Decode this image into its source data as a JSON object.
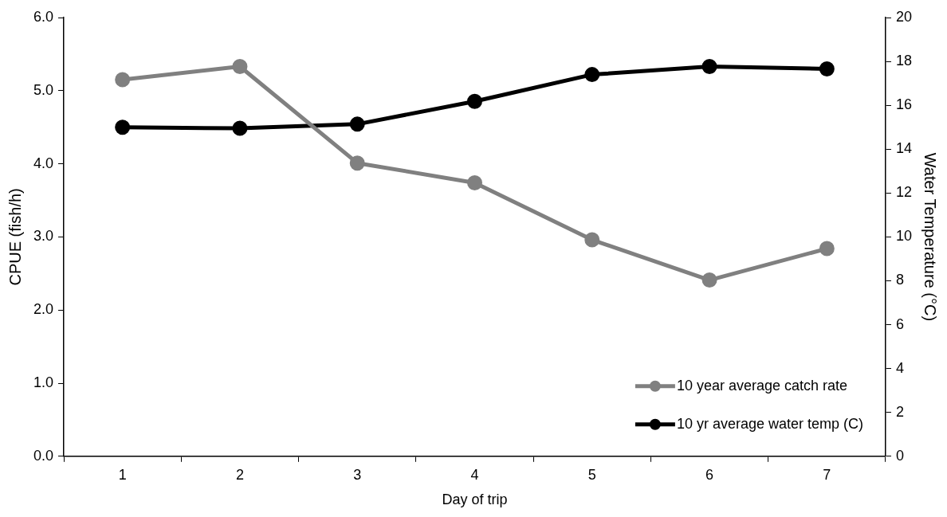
{
  "chart_data": {
    "type": "line",
    "xlabel": "Day of trip",
    "ylabel": "CPUE (fish/h)",
    "y2label": "Water Temperature (°C)",
    "categories": [
      "1",
      "2",
      "3",
      "4",
      "5",
      "6",
      "7"
    ],
    "series": [
      {
        "name": "10 year average catch rate",
        "color": "#808080",
        "values": [
          5.15,
          5.33,
          4.01,
          3.74,
          2.96,
          2.41,
          2.84
        ]
      },
      {
        "name": "10 yr average water temp (C)",
        "color": "#000000",
        "axis": "y2",
        "values": [
          15.0,
          14.95,
          15.14,
          16.18,
          17.4,
          17.77,
          17.66
        ]
      }
    ],
    "ylim": [
      0,
      6
    ],
    "yticks": [
      {
        "value": 0,
        "label": "0.0"
      },
      {
        "value": 1,
        "label": "1.0"
      },
      {
        "value": 2,
        "label": "2.0"
      },
      {
        "value": 3,
        "label": "3.0"
      },
      {
        "value": 4,
        "label": "4.0"
      },
      {
        "value": 5,
        "label": "5.0"
      },
      {
        "value": 6,
        "label": "6.0"
      }
    ],
    "y2lim": [
      0,
      20
    ],
    "y2ticks": [
      0,
      2,
      4,
      6,
      8,
      10,
      12,
      14,
      16,
      18,
      20
    ],
    "grid": false,
    "legend": "bottom right",
    "marker": "circle",
    "line_style": "solid"
  }
}
